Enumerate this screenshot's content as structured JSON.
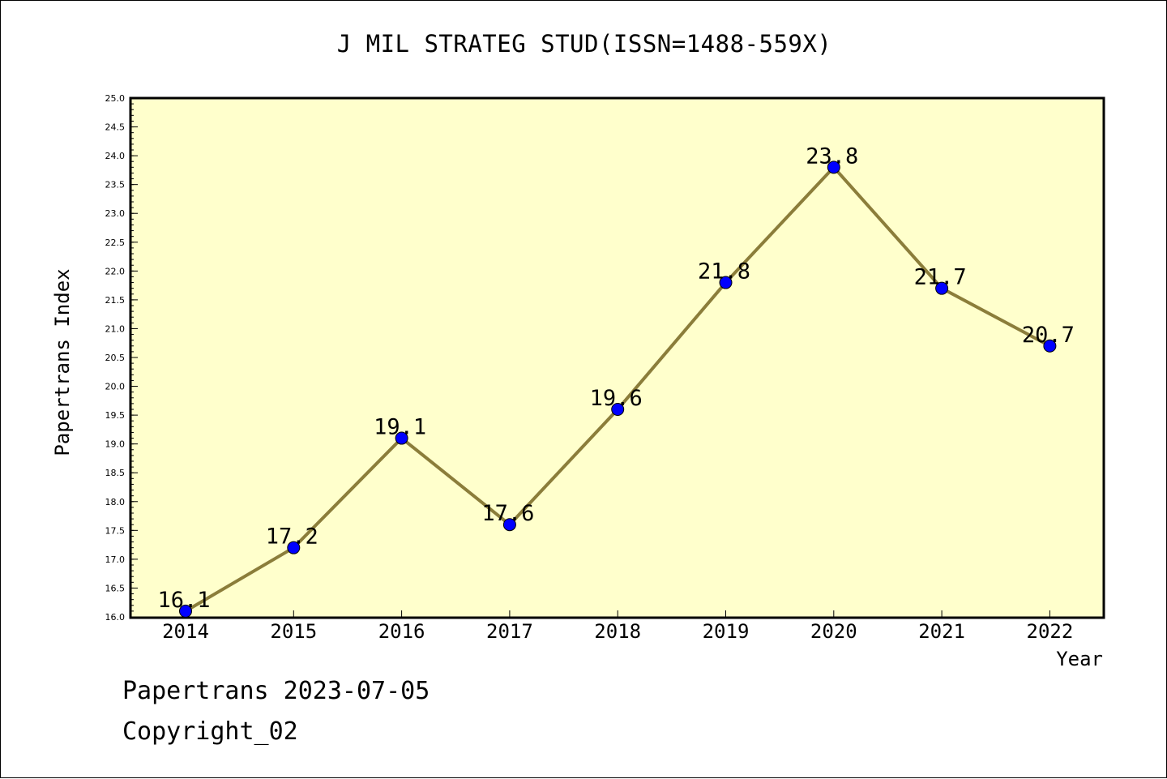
{
  "chart_data": {
    "type": "line",
    "title": "J MIL STRATEG STUD(ISSN=1488-559X)",
    "xlabel": "Year",
    "ylabel": "Papertrans Index",
    "categories": [
      "2014",
      "2015",
      "2016",
      "2017",
      "2018",
      "2019",
      "2020",
      "2021",
      "2022"
    ],
    "series": [
      {
        "values": [
          16.1,
          17.2,
          19.1,
          17.6,
          19.6,
          21.8,
          23.8,
          21.7,
          20.7
        ]
      }
    ],
    "data_labels": [
      "16.1",
      "17.2",
      "19.1",
      "17.6",
      "19.6",
      "21.8",
      "23.8",
      "21.7",
      "20.7"
    ],
    "ylim": [
      16.0,
      25.0
    ],
    "yticks": [
      "16.0",
      "16.5",
      "17.0",
      "17.5",
      "18.0",
      "18.5",
      "19.0",
      "19.5",
      "20.0",
      "20.5",
      "21.0",
      "21.5",
      "22.0",
      "22.5",
      "23.0",
      "23.5",
      "24.0",
      "24.5",
      "25.0"
    ],
    "grid": false,
    "colors": {
      "plot_background": "#ffffcc",
      "line": "#8b7d3a",
      "marker": "#0000ff"
    }
  },
  "footer": {
    "date_line": "Papertrans 2023-07-05",
    "copyright": "Copyright_02"
  }
}
